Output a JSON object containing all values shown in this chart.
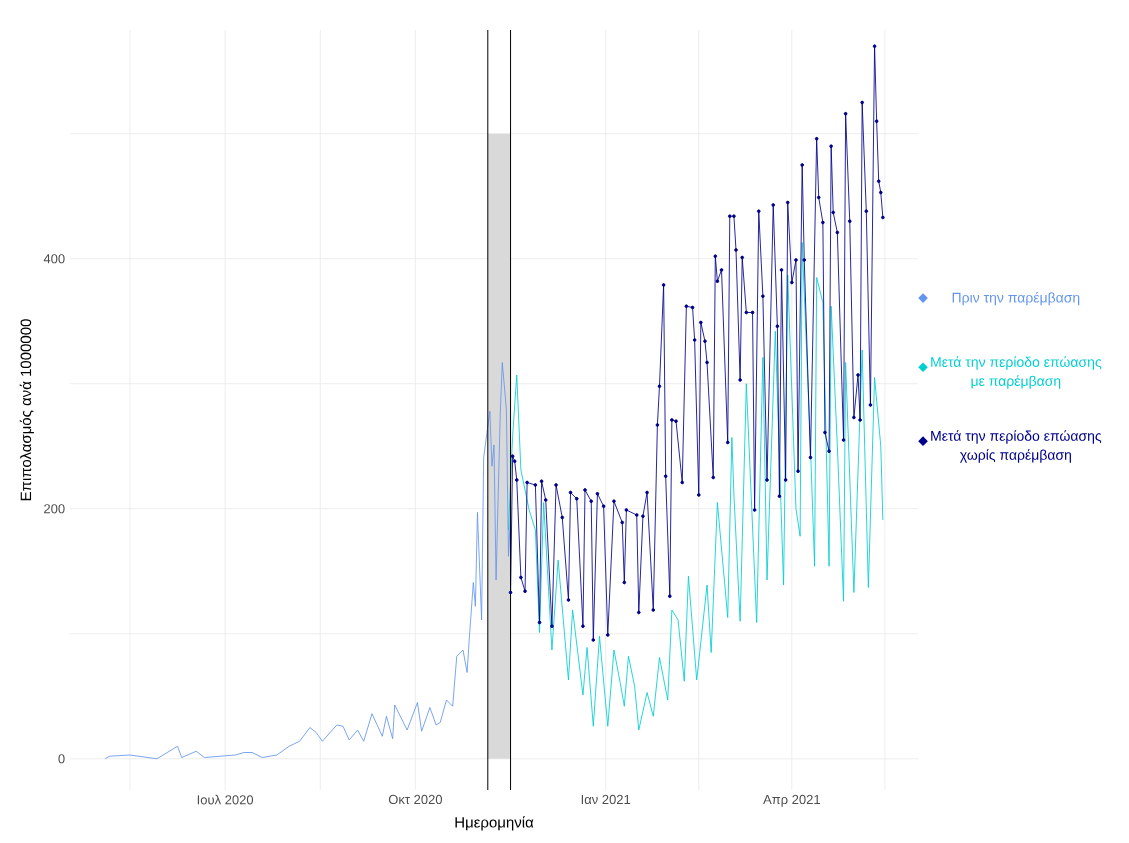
{
  "chart_data": {
    "type": "line",
    "xlabel": "Ημερομηνία",
    "ylabel": "Επιπολασμός ανά 1000000",
    "xlim": [
      "2020-04-17",
      "2021-06-01"
    ],
    "ylim": [
      -25,
      583
    ],
    "xticks": [
      {
        "value": "2020-05-16",
        "label": null
      },
      {
        "value": "2020-07-01",
        "label": "Ιουλ 2020"
      },
      {
        "value": "2020-08-16",
        "label": null
      },
      {
        "value": "2020-10-01",
        "label": "Οκτ 2020"
      },
      {
        "value": "2020-11-16",
        "label": null
      },
      {
        "value": "2021-01-01",
        "label": "Ιαν 2021"
      },
      {
        "value": "2021-02-15",
        "label": null
      },
      {
        "value": "2021-04-01",
        "label": "Απρ 2021"
      },
      {
        "value": "2021-05-16",
        "label": null
      }
    ],
    "yticks": [
      0,
      {
        "value": 100,
        "label": null
      },
      200,
      {
        "value": 300,
        "label": null
      },
      400,
      {
        "value": 500,
        "label": null
      }
    ],
    "grid": true,
    "legend": "right",
    "ref_lines": [
      {
        "axis": "x",
        "value": "2020-11-05",
        "color": "#000000"
      },
      {
        "axis": "x",
        "value": "2020-11-16",
        "color": "#000000"
      }
    ],
    "series": [
      {
        "type": "area",
        "color": "#d9d9d9",
        "x": [
          "2020-11-05",
          "2020-11-16"
        ],
        "values": [
          500,
          500
        ]
      },
      {
        "name": "Πριν την παρέμβαση",
        "color": "#6495ed",
        "x": [
          "2020-05-04",
          "2020-05-06",
          "2020-05-16",
          "2020-05-29",
          "2020-06-08",
          "2020-06-10",
          "2020-06-17",
          "2020-06-21",
          "2020-07-06",
          "2020-07-10",
          "2020-07-14",
          "2020-07-19",
          "2020-07-26",
          "2020-08-01",
          "2020-08-06",
          "2020-08-11",
          "2020-08-14",
          "2020-08-17",
          "2020-08-24",
          "2020-08-27",
          "2020-08-30",
          "2020-09-03",
          "2020-09-06",
          "2020-09-10",
          "2020-09-15",
          "2020-09-17",
          "2020-09-20",
          "2020-09-21",
          "2020-09-27",
          "2020-10-02",
          "2020-10-04",
          "2020-10-08",
          "2020-10-11",
          "2020-10-13",
          "2020-10-16",
          "2020-10-19",
          "2020-10-21",
          "2020-10-24",
          "2020-10-26",
          "2020-10-27",
          "2020-10-29",
          "2020-10-30",
          "2020-10-31",
          "2020-11-02",
          "2020-11-03",
          "2020-11-06",
          "2020-11-07",
          "2020-11-08",
          "2020-11-09",
          "2020-11-11",
          "2020-11-12",
          "2020-11-14",
          "2020-11-15",
          "2020-11-16"
        ],
        "values": [
          0,
          2,
          3,
          0,
          10,
          1,
          6,
          1,
          3,
          5,
          5,
          1,
          3,
          10,
          14,
          25,
          21,
          14,
          27,
          26,
          15,
          23,
          14,
          36,
          18,
          34,
          16,
          43,
          23,
          45,
          22,
          41,
          27,
          29,
          47,
          42,
          82,
          87,
          69,
          95,
          141,
          122,
          197,
          111,
          241,
          278,
          234,
          251,
          143,
          275,
          317,
          279,
          162,
          195
        ]
      },
      {
        "name": "Μετά την περίοδο επώασης με παρέμβαση",
        "color": "#00ced1",
        "x": [
          "2020-11-15",
          "2020-11-17",
          "2020-11-19",
          "2020-11-21",
          "2020-11-25",
          "2020-11-28",
          "2020-11-30",
          "2020-12-02",
          "2020-12-06",
          "2020-12-09",
          "2020-12-14",
          "2020-12-16",
          "2020-12-21",
          "2020-12-23",
          "2020-12-26",
          "2020-12-29",
          "2021-01-02",
          "2021-01-05",
          "2021-01-08",
          "2021-01-10",
          "2021-01-12",
          "2021-01-15",
          "2021-01-17",
          "2021-01-21",
          "2021-01-24",
          "2021-01-27",
          "2021-01-31",
          "2021-02-02",
          "2021-02-05",
          "2021-02-08",
          "2021-02-10",
          "2021-02-14",
          "2021-02-19",
          "2021-02-21",
          "2021-02-24",
          "2021-03-01",
          "2021-03-03",
          "2021-03-04",
          "2021-03-07",
          "2021-03-10",
          "2021-03-15",
          "2021-03-18",
          "2021-03-20",
          "2021-03-24",
          "2021-03-28",
          "2021-03-30",
          "2021-04-03",
          "2021-04-05",
          "2021-04-06",
          "2021-04-10",
          "2021-04-12",
          "2021-04-13",
          "2021-04-16",
          "2021-04-19",
          "2021-04-20",
          "2021-04-23",
          "2021-04-26",
          "2021-04-27",
          "2021-05-01",
          "2021-05-03",
          "2021-05-05",
          "2021-05-08",
          "2021-05-11",
          "2021-05-14",
          "2021-05-15"
        ],
        "values": [
          183,
          258,
          307,
          231,
          199,
          183,
          101,
          205,
          87,
          159,
          63,
          119,
          51,
          89,
          26,
          98,
          26,
          87,
          61,
          42,
          82,
          58,
          23,
          53,
          34,
          81,
          47,
          119,
          111,
          62,
          146,
          63,
          139,
          85,
          205,
          113,
          257,
          211,
          110,
          300,
          109,
          321,
          143,
          342,
          139,
          387,
          200,
          178,
          413,
          250,
          154,
          385,
          365,
          154,
          362,
          250,
          126,
          317,
          133,
          230,
          327,
          137,
          305,
          250,
          191
        ]
      },
      {
        "name": "Μετά την περίοδο επώασης χωρίς παρέμβαση",
        "color": "#00008b",
        "marker": "circle",
        "x": [
          "2020-11-16",
          "2020-11-17",
          "2020-11-18",
          "2020-11-19",
          "2020-11-21",
          "2020-11-23",
          "2020-11-24",
          "2020-11-28",
          "2020-11-30",
          "2020-12-01",
          "2020-12-03",
          "2020-12-06",
          "2020-12-08",
          "2020-12-11",
          "2020-12-14",
          "2020-12-15",
          "2020-12-18",
          "2020-12-21",
          "2020-12-22",
          "2020-12-25",
          "2020-12-26",
          "2020-12-28",
          "2020-12-31",
          "2021-01-02",
          "2021-01-05",
          "2021-01-09",
          "2021-01-10",
          "2021-01-11",
          "2021-01-16",
          "2021-01-17",
          "2021-01-19",
          "2021-01-21",
          "2021-01-24",
          "2021-01-26",
          "2021-01-27",
          "2021-01-29",
          "2021-01-30",
          "2021-02-01",
          "2021-02-02",
          "2021-02-04",
          "2021-02-07",
          "2021-02-09",
          "2021-02-12",
          "2021-02-13",
          "2021-02-15",
          "2021-02-16",
          "2021-02-18",
          "2021-02-19",
          "2021-02-22",
          "2021-02-23",
          "2021-02-24",
          "2021-02-26",
          "2021-03-01",
          "2021-03-02",
          "2021-03-04",
          "2021-03-05",
          "2021-03-07",
          "2021-03-08",
          "2021-03-10",
          "2021-03-13",
          "2021-03-14",
          "2021-03-16",
          "2021-03-18",
          "2021-03-20",
          "2021-03-23",
          "2021-03-25",
          "2021-03-26",
          "2021-03-27",
          "2021-03-29",
          "2021-03-30",
          "2021-04-01",
          "2021-04-03",
          "2021-04-04",
          "2021-04-06",
          "2021-04-07",
          "2021-04-10",
          "2021-04-13",
          "2021-04-14",
          "2021-04-16",
          "2021-04-17",
          "2021-04-19",
          "2021-04-20",
          "2021-04-21",
          "2021-04-23",
          "2021-04-26",
          "2021-04-27",
          "2021-04-29",
          "2021-05-01",
          "2021-05-03",
          "2021-05-04",
          "2021-05-05",
          "2021-05-07",
          "2021-05-09",
          "2021-05-11",
          "2021-05-12",
          "2021-05-13",
          "2021-05-14",
          "2021-05-15"
        ],
        "values": [
          133,
          242,
          238,
          223,
          145,
          134,
          221,
          219,
          109,
          222,
          207,
          106,
          219,
          193,
          127,
          213,
          208,
          106,
          215,
          206,
          95,
          212,
          202,
          99,
          206,
          189,
          141,
          199,
          195,
          117,
          194,
          213,
          119,
          267,
          298,
          379,
          226,
          130,
          271,
          270,
          221,
          362,
          361,
          335,
          211,
          349,
          334,
          317,
          225,
          402,
          382,
          391,
          253,
          434,
          434,
          407,
          303,
          401,
          357,
          357,
          199,
          438,
          370,
          223,
          443,
          346,
          210,
          391,
          223,
          445,
          381,
          399,
          230,
          475,
          399,
          241,
          496,
          449,
          429,
          261,
          246,
          490,
          437,
          421,
          255,
          516,
          430,
          273,
          307,
          271,
          525,
          438,
          283,
          570,
          510,
          462,
          453,
          433
        ]
      }
    ]
  }
}
